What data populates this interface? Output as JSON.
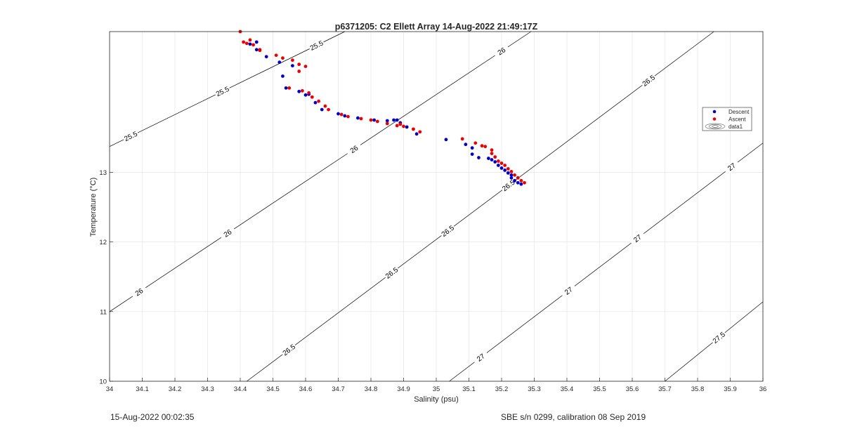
{
  "chart_data": {
    "type": "scatter",
    "title": "p6371205: C2 Ellett Array 14-Aug-2022 21:49:17Z",
    "xlabel": "Salinity (psu)",
    "ylabel": "Temperature (°C)",
    "xlim": [
      34,
      36
    ],
    "ylim": [
      10,
      15.02
    ],
    "x_ticks": [
      34,
      34.1,
      34.2,
      34.3,
      34.4,
      34.5,
      34.6,
      34.7,
      34.8,
      34.9,
      35,
      35.1,
      35.2,
      35.3,
      35.4,
      35.5,
      35.6,
      35.7,
      35.8,
      35.9,
      36
    ],
    "x_tick_labels": [
      "34",
      "34.1",
      "34.2",
      "34.3",
      "34.4",
      "34.5",
      "34.6",
      "34.7",
      "34.8",
      "34.9",
      "35",
      "35.1",
      "35.2",
      "35.3",
      "35.4",
      "35.5",
      "35.6",
      "35.7",
      "35.8",
      "35.9",
      "36"
    ],
    "y_ticks": [
      10,
      11,
      12,
      13
    ],
    "y_tick_labels": [
      "10",
      "11",
      "12",
      "13"
    ],
    "grid": true,
    "legend_position": "right",
    "legend": [
      "Descent",
      "Ascent",
      "data1"
    ],
    "series": [
      {
        "name": "Descent",
        "color": "#0000cc",
        "points": [
          [
            34.45,
            14.87
          ],
          [
            34.43,
            14.84
          ],
          [
            34.45,
            14.76
          ],
          [
            34.48,
            14.66
          ],
          [
            34.52,
            14.58
          ],
          [
            34.56,
            14.53
          ],
          [
            34.53,
            14.38
          ],
          [
            34.54,
            14.21
          ],
          [
            34.58,
            14.16
          ],
          [
            34.6,
            14.11
          ],
          [
            34.61,
            14.12
          ],
          [
            34.63,
            14.0
          ],
          [
            34.65,
            13.9
          ],
          [
            34.7,
            13.84
          ],
          [
            34.72,
            13.81
          ],
          [
            34.76,
            13.78
          ],
          [
            34.81,
            13.75
          ],
          [
            34.85,
            13.74
          ],
          [
            34.87,
            13.75
          ],
          [
            34.88,
            13.75
          ],
          [
            34.89,
            13.71
          ],
          [
            34.91,
            13.65
          ],
          [
            34.94,
            13.55
          ],
          [
            35.03,
            13.47
          ],
          [
            35.09,
            13.4
          ],
          [
            35.11,
            13.35
          ],
          [
            35.11,
            13.26
          ],
          [
            35.13,
            13.21
          ],
          [
            35.16,
            13.2
          ],
          [
            35.17,
            13.18
          ],
          [
            35.18,
            13.15
          ],
          [
            35.19,
            13.1
          ],
          [
            35.2,
            13.06
          ],
          [
            35.21,
            13.03
          ],
          [
            35.22,
            12.99
          ],
          [
            35.23,
            12.96
          ],
          [
            35.23,
            12.92
          ],
          [
            35.24,
            12.88
          ],
          [
            35.25,
            12.85
          ],
          [
            35.26,
            12.83
          ]
        ]
      },
      {
        "name": "Ascent",
        "color": "#ee0000",
        "points": [
          [
            34.4,
            15.02
          ],
          [
            34.41,
            14.87
          ],
          [
            34.43,
            14.9
          ],
          [
            34.42,
            14.85
          ],
          [
            34.44,
            14.83
          ],
          [
            34.46,
            14.76
          ],
          [
            34.46,
            14.75
          ],
          [
            34.51,
            14.68
          ],
          [
            34.53,
            14.64
          ],
          [
            34.56,
            14.61
          ],
          [
            34.58,
            14.55
          ],
          [
            34.6,
            14.52
          ],
          [
            34.58,
            14.45
          ],
          [
            34.55,
            14.21
          ],
          [
            34.59,
            14.17
          ],
          [
            34.61,
            14.14
          ],
          [
            34.62,
            14.08
          ],
          [
            34.64,
            14.02
          ],
          [
            34.66,
            13.95
          ],
          [
            34.67,
            13.9
          ],
          [
            34.71,
            13.83
          ],
          [
            34.73,
            13.8
          ],
          [
            34.77,
            13.77
          ],
          [
            34.8,
            13.75
          ],
          [
            34.82,
            13.73
          ],
          [
            34.85,
            13.7
          ],
          [
            34.88,
            13.67
          ],
          [
            34.89,
            13.69
          ],
          [
            34.9,
            13.66
          ],
          [
            34.93,
            13.62
          ],
          [
            34.95,
            13.58
          ],
          [
            35.08,
            13.48
          ],
          [
            35.12,
            13.42
          ],
          [
            35.14,
            13.38
          ],
          [
            35.15,
            13.37
          ],
          [
            35.17,
            13.32
          ],
          [
            35.17,
            13.27
          ],
          [
            35.18,
            13.22
          ],
          [
            35.19,
            13.16
          ],
          [
            35.2,
            13.13
          ],
          [
            35.21,
            13.1
          ],
          [
            35.22,
            13.05
          ],
          [
            35.23,
            13.01
          ],
          [
            35.24,
            12.96
          ],
          [
            35.25,
            12.92
          ],
          [
            35.26,
            12.88
          ],
          [
            35.27,
            12.85
          ]
        ]
      }
    ],
    "contour_labels": {
      "25.5": [
        "25.5",
        "25.5",
        "25.5"
      ],
      "26": [
        "26",
        "26",
        "26",
        "26"
      ],
      "26.5": [
        "26.5",
        "26.5",
        "26.5",
        "26.5",
        "26.5"
      ],
      "27": [
        "27",
        "27",
        "27",
        "27"
      ],
      "27.5": [
        "27.5"
      ]
    },
    "footer_left": "15-Aug-2022 00:02:35",
    "footer_right": "SBE s/n 0299, calibration 08 Sep 2019"
  }
}
